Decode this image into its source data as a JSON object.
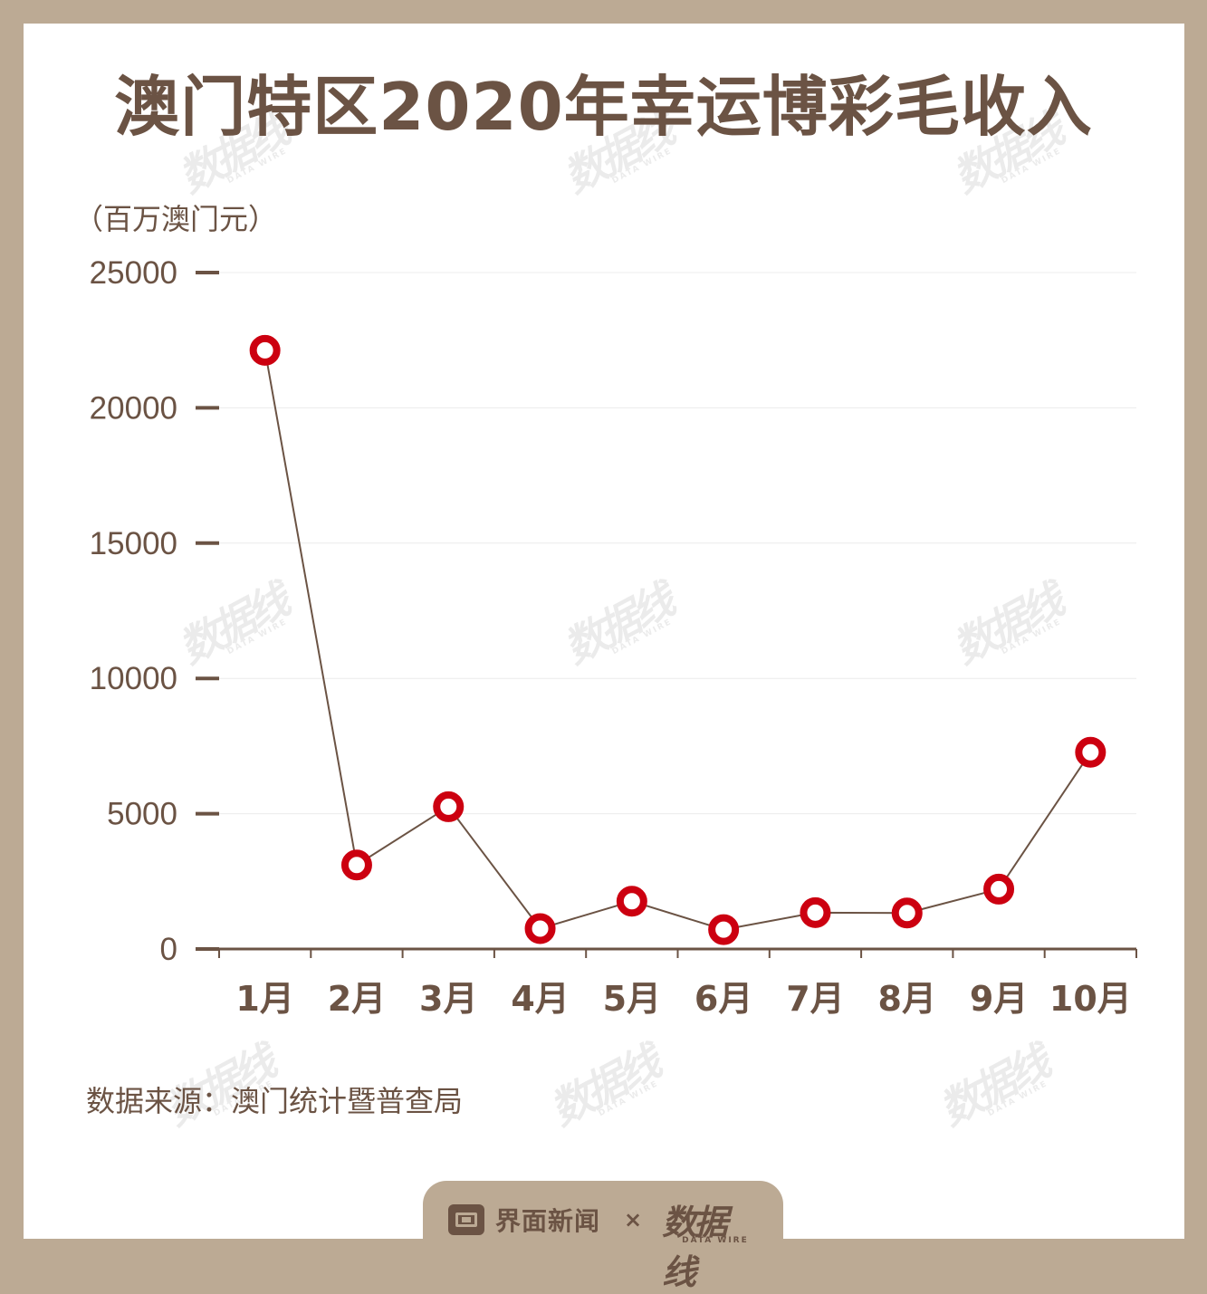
{
  "title": "澳门特区2020年幸运博彩毛收入",
  "unit_label": "（百万澳门元）",
  "source_label": "数据来源：澳门统计暨普查局",
  "footer": {
    "brand_left": "界面新闻",
    "separator": "×",
    "brand_right_cn": "数据线",
    "brand_right_en": "DATA WIRE"
  },
  "watermark": {
    "cn": "数据线",
    "en": "DATA WIRE"
  },
  "colors": {
    "background": "#bcaa94",
    "text": "#6b5344",
    "marker": "#cc0010",
    "line": "#6b5344"
  },
  "chart_data": {
    "type": "line",
    "title": "澳门特区2020年幸运博彩毛收入",
    "ylabel": "（百万澳门元）",
    "xlabel": "",
    "categories": [
      "1月",
      "2月",
      "3月",
      "4月",
      "5月",
      "6月",
      "7月",
      "8月",
      "9月",
      "10月"
    ],
    "series": [
      {
        "values": [
          22126,
          3104,
          5257,
          754,
          1764,
          716,
          1344,
          1330,
          2211,
          7270
        ]
      }
    ],
    "ylim": [
      0,
      25000
    ],
    "yticks": [
      0,
      5000,
      10000,
      15000,
      20000,
      25000
    ],
    "grid": true,
    "legend": "none"
  }
}
